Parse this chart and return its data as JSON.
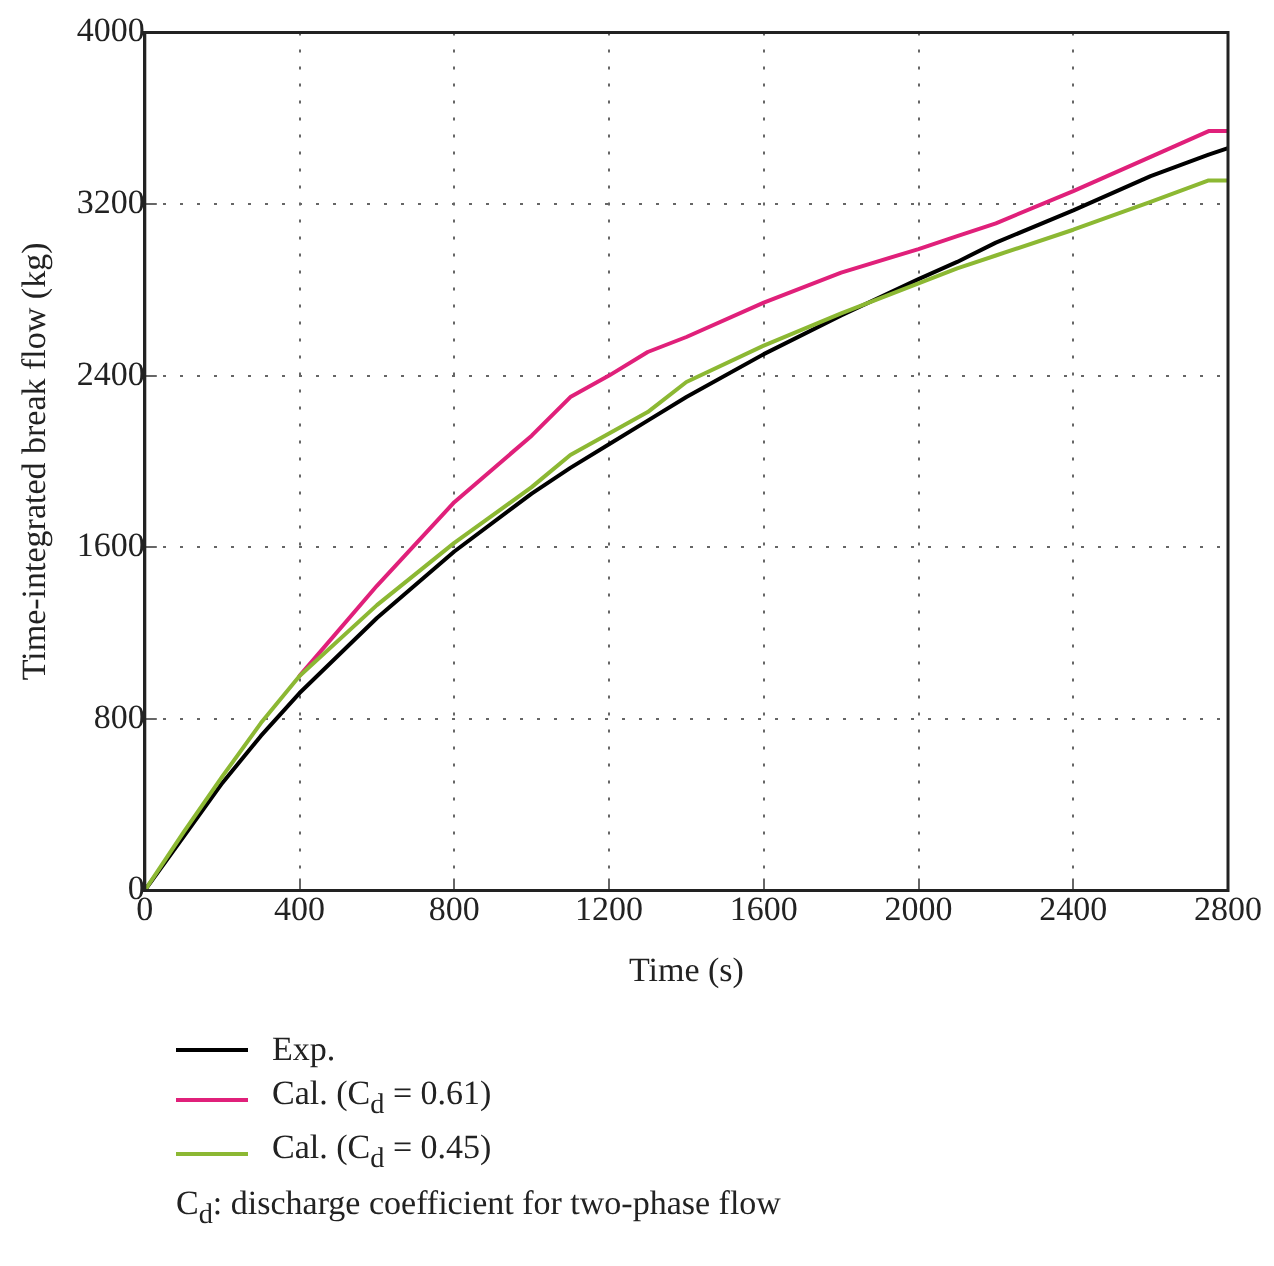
{
  "chart_data": {
    "type": "line",
    "xlabel": "Time (s)",
    "ylabel": "Time-integrated break flow (kg)",
    "x": [
      0,
      100,
      200,
      300,
      400,
      600,
      800,
      1000,
      1100,
      1200,
      1300,
      1400,
      1600,
      1800,
      2000,
      2100,
      2200,
      2400,
      2600,
      2750,
      2800
    ],
    "series": [
      {
        "name": "Exp.",
        "color": "#000000",
        "values": [
          0,
          250,
          500,
          720,
          920,
          1270,
          1580,
          1850,
          1970,
          2080,
          2190,
          2300,
          2500,
          2680,
          2850,
          2930,
          3020,
          3170,
          3330,
          3430,
          3460
        ]
      },
      {
        "name": "Cal. (C$_{d}$ = 0.61)",
        "color": "#e0207a",
        "values": [
          null,
          null,
          null,
          null,
          1000,
          1420,
          1810,
          2120,
          2300,
          2400,
          2510,
          2580,
          2740,
          2880,
          2990,
          3050,
          3110,
          3260,
          3420,
          3540,
          3540
        ]
      },
      {
        "name": "Cal. (C$_{d}$ = 0.45)",
        "color": "#8cb833",
        "values": [
          0,
          270,
          530,
          780,
          1000,
          1330,
          1620,
          1880,
          2030,
          2130,
          2230,
          2370,
          2540,
          2690,
          2830,
          2900,
          2960,
          3080,
          3210,
          3310,
          3310
        ]
      }
    ],
    "xlim": [
      0,
      2800
    ],
    "xticks": [
      0,
      400,
      800,
      1200,
      1600,
      2000,
      2400,
      2800
    ],
    "ylim": [
      0,
      4000
    ],
    "yticks": [
      0,
      800,
      1600,
      2400,
      3200,
      4000
    ],
    "grid": true,
    "legend": "bottom",
    "marker": "none",
    "line_style": "solid",
    "annotations": [
      "C$_{d}$: discharge coefficient for two-phase flow"
    ]
  }
}
